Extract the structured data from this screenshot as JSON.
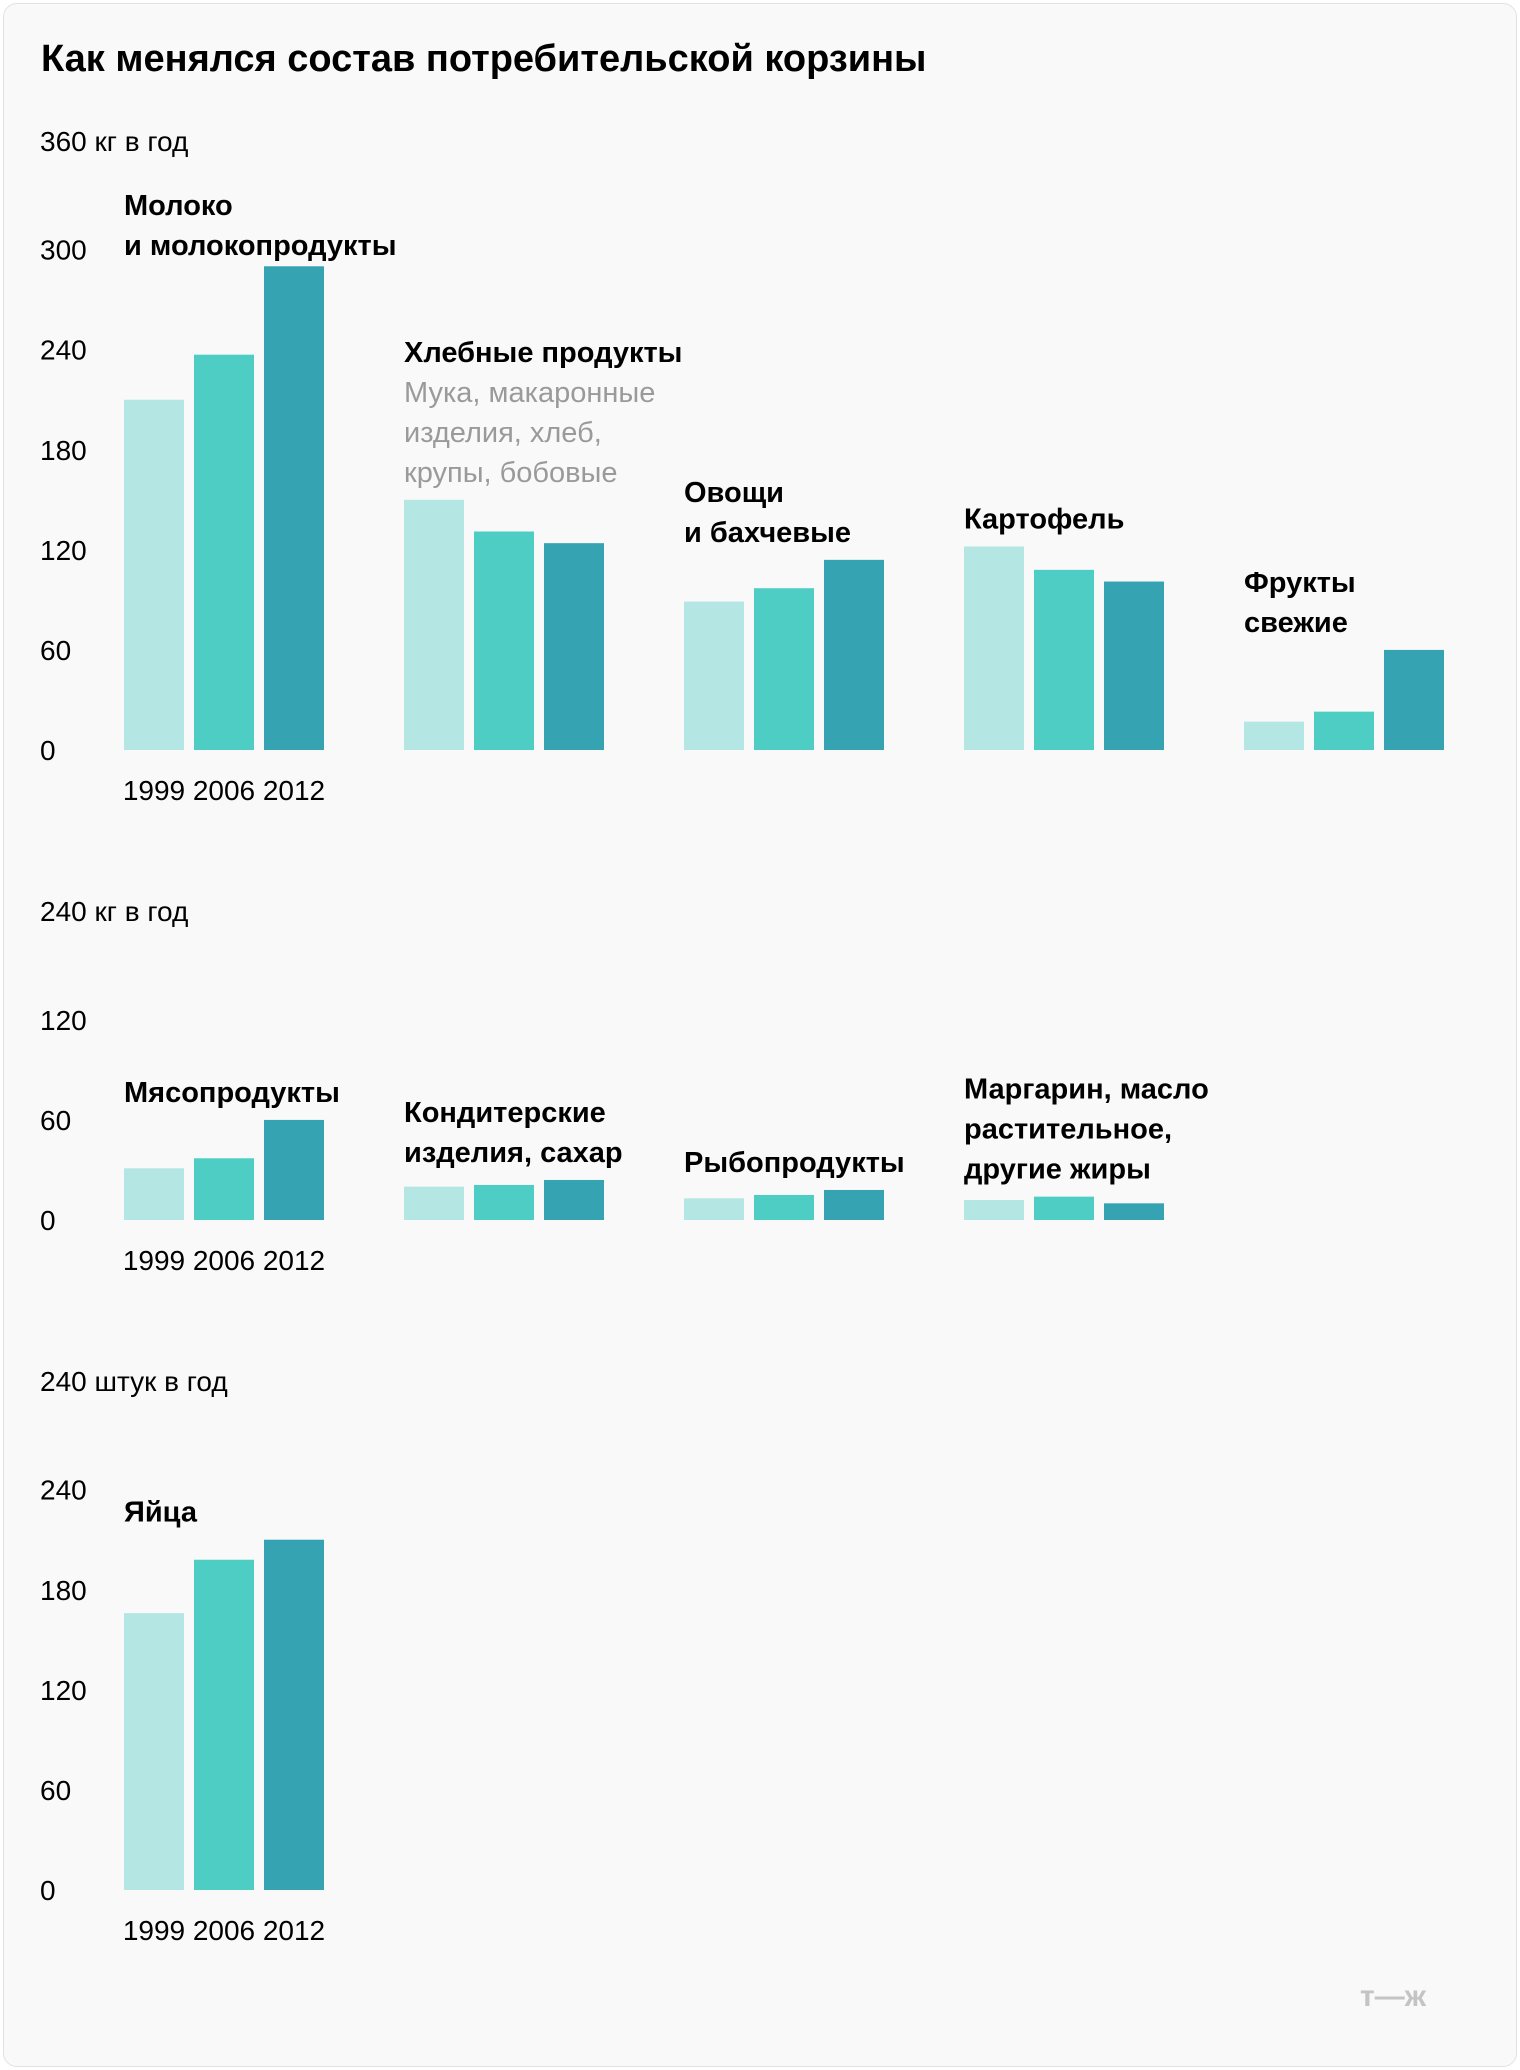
{
  "title": "Как менялся состав потребительской корзины",
  "logo": "т—ж",
  "colors": {
    "y1999": "#b4e7e4",
    "y2006": "#4ecdc4",
    "y2012": "#36a3b3",
    "axis_text": "#000000",
    "subtitle_text": "#9a9a9a"
  },
  "chart_data": [
    {
      "type": "bar",
      "unit_label": "360 кг в год",
      "ylim": [
        0,
        360
      ],
      "yticks": [
        0,
        60,
        120,
        180,
        240,
        300
      ],
      "series_names": [
        "1999",
        "2006",
        "2012"
      ],
      "groups": [
        {
          "name": [
            "Молоко",
            "и молокопродукты"
          ],
          "subtitle": [],
          "values": [
            210,
            237,
            290
          ]
        },
        {
          "name": [
            "Хлебные продукты"
          ],
          "subtitle": [
            "Мука, макаронные",
            "изделия, хлеб,",
            "крупы, бобовые"
          ],
          "values": [
            150,
            131,
            124
          ]
        },
        {
          "name": [
            "Овощи",
            "и бахчевые"
          ],
          "subtitle": [],
          "values": [
            89,
            97,
            114
          ]
        },
        {
          "name": [
            "Картофель"
          ],
          "subtitle": [],
          "values": [
            122,
            108,
            101
          ]
        },
        {
          "name": [
            "Фрукты",
            "свежие"
          ],
          "subtitle": [],
          "values": [
            17,
            23,
            60
          ]
        }
      ]
    },
    {
      "type": "bar",
      "unit_label": "240 кг в год",
      "ylim": [
        0,
        240
      ],
      "yticks": [
        0,
        60,
        120
      ],
      "series_names": [
        "1999",
        "2006",
        "2012"
      ],
      "groups": [
        {
          "name": [
            "Мясопродукты"
          ],
          "subtitle": [],
          "values": [
            31,
            37,
            60
          ]
        },
        {
          "name": [
            "Кондитерские",
            "изделия, сахар"
          ],
          "subtitle": [],
          "values": [
            20,
            21,
            24
          ]
        },
        {
          "name": [
            "Рыбопродукты"
          ],
          "subtitle": [],
          "values": [
            13,
            15,
            18
          ]
        },
        {
          "name": [
            "Маргарин, масло",
            "растительное,",
            "другие жиры"
          ],
          "subtitle": [],
          "values": [
            12,
            14,
            10
          ]
        }
      ]
    },
    {
      "type": "bar",
      "unit_label": "240 штук в год",
      "ylim": [
        0,
        240
      ],
      "yticks": [
        0,
        60,
        120,
        180,
        240
      ],
      "series_names": [
        "1999",
        "2006",
        "2012"
      ],
      "groups": [
        {
          "name": [
            "Яйца"
          ],
          "subtitle": [],
          "values": [
            166,
            198,
            210
          ]
        }
      ]
    }
  ]
}
